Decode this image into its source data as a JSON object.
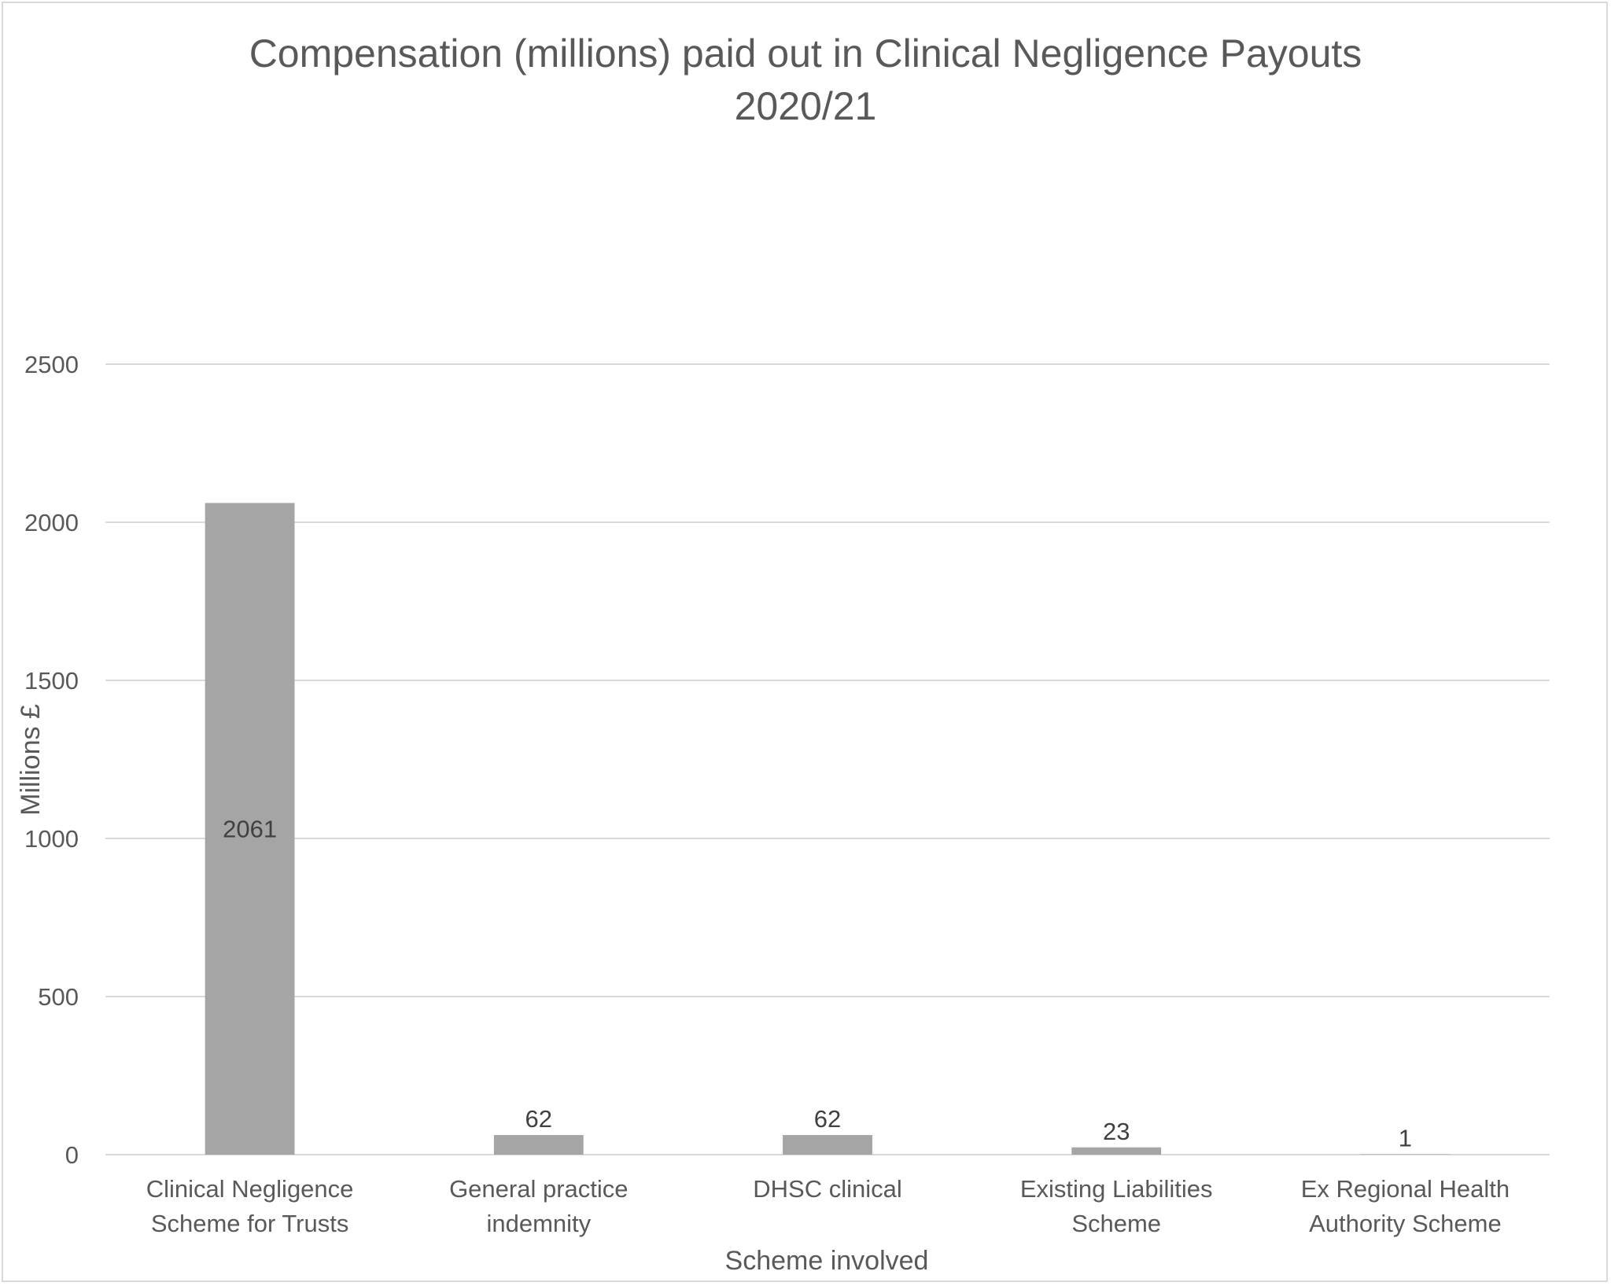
{
  "chart_data": {
    "type": "bar",
    "title_lines": [
      "Compensation (millions) paid out in Clinical Negligence Payouts",
      "2020/21"
    ],
    "xlabel": "Scheme involved",
    "ylabel": "Millions £",
    "categories": [
      [
        "Clinical Negligence",
        "Scheme for Trusts"
      ],
      [
        "General practice",
        "indemnity"
      ],
      [
        "DHSC clinical"
      ],
      [
        "Existing Liabilities",
        "Scheme"
      ],
      [
        "Ex Regional Health",
        "Authority Scheme"
      ]
    ],
    "values": [
      2061,
      62,
      62,
      23,
      1
    ],
    "data_labels": [
      "2061",
      "62",
      "62",
      "23",
      "1"
    ],
    "data_label_position": [
      "center",
      "outside-end",
      "outside-end",
      "outside-end",
      "outside-end"
    ],
    "ylim": [
      0,
      2500
    ],
    "yticks": [
      0,
      500,
      1000,
      1500,
      2000,
      2500
    ],
    "ytick_labels": [
      "0",
      "500",
      "1000",
      "1500",
      "2000",
      "2500"
    ],
    "grid": true,
    "legend": "none",
    "colors": {
      "bar": "#a5a5a5",
      "grid": "#d9d9d9",
      "text": "#595959",
      "label": "#404040"
    }
  }
}
